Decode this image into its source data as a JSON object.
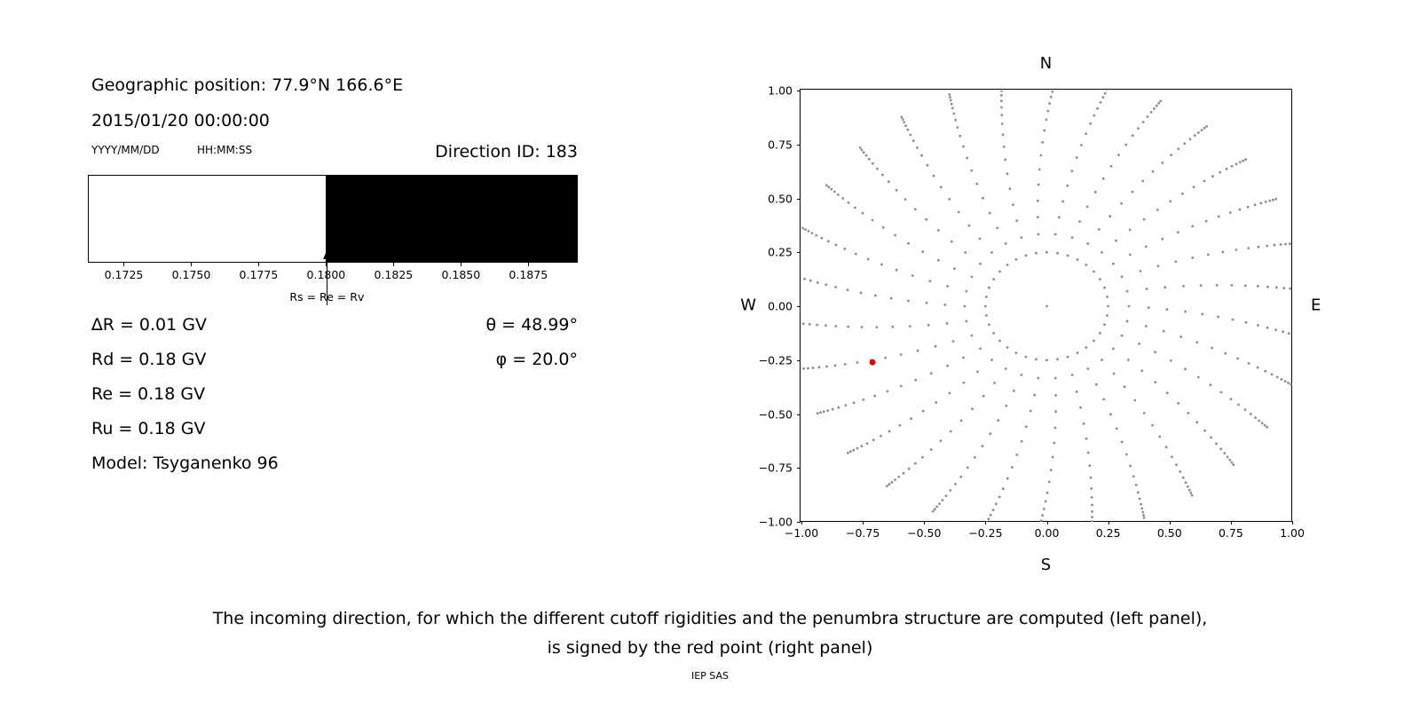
{
  "figure": {
    "background": "#ffffff",
    "text_color": "#000000"
  },
  "left_panel": {
    "geo_position": "Geographic position: 77.9°N 166.6°E",
    "datetime": "2015/01/20 00:00:00",
    "date_format_label": "YYYY/MM/DD",
    "time_format_label": "HH:MM:SS",
    "direction_id": "Direction ID: 183",
    "values": [
      "∆R = 0.01 GV",
      "Rd = 0.18 GV",
      "Re = 0.18 GV",
      "Ru = 0.18 GV",
      "Model: Tsyganenko 96"
    ],
    "angles": [
      "θ = 48.99°",
      "φ = 20.0°"
    ]
  },
  "caption": {
    "line1": "The incoming direction, for which the different cutoff rigidities and the penumbra structure are computed (left panel),",
    "line2": "is signed by the red point (right panel)",
    "credit": "IEP SAS"
  },
  "chart_data": [
    {
      "id": "penumbra-structure",
      "type": "bar",
      "xlim": [
        0.1712,
        0.1893
      ],
      "xticks": [
        0.1725,
        0.175,
        0.1775,
        0.18,
        0.1825,
        0.185,
        0.1875
      ],
      "xtick_labels": [
        "0.1725",
        "0.1750",
        "0.1775",
        "0.1800",
        "0.1825",
        "0.1850",
        "0.1875"
      ],
      "segments": [
        {
          "from": 0.1712,
          "to": 0.18,
          "color": "#ffffff"
        },
        {
          "from": 0.18,
          "to": 0.1893,
          "color": "#000000"
        }
      ],
      "marker": {
        "x": 0.18,
        "label": "Rs = Re = Rv"
      }
    },
    {
      "id": "incoming-direction-map",
      "type": "scatter",
      "xlim": [
        -1,
        1
      ],
      "ylim": [
        -1,
        1
      ],
      "xticks": [
        -1,
        -0.75,
        -0.5,
        -0.25,
        0,
        0.25,
        0.5,
        0.75,
        1
      ],
      "yticks": [
        -1,
        -0.75,
        -0.5,
        -0.25,
        0,
        0.25,
        0.5,
        0.75,
        1
      ],
      "xtick_labels": [
        "−1.00",
        "−0.75",
        "−0.50",
        "−0.25",
        "0.00",
        "0.25",
        "0.50",
        "0.75",
        "1.00"
      ],
      "ytick_labels": [
        "−1.00",
        "−0.75",
        "−0.50",
        "−0.25",
        "0.00",
        "0.25",
        "0.50",
        "0.75",
        "1.00"
      ],
      "compass": {
        "top": "N",
        "bottom": "S",
        "left": "W",
        "right": "E"
      },
      "grid_dots": {
        "color": "#8c8c8c",
        "center_dot": true,
        "ring_radius": 0.25,
        "ring_azimuth_step_deg": 10,
        "azimuth_step_deg": 12,
        "curl_deg": -8,
        "spoke_radii": [
          0.335,
          0.415,
          0.49,
          0.565,
          0.635,
          0.7,
          0.76,
          0.815,
          0.865,
          0.905,
          0.94,
          0.97,
          0.995,
          1.015,
          1.032,
          1.046,
          1.058
        ]
      },
      "red_point": {
        "x": -0.71,
        "y": -0.26,
        "color": "#e00000"
      }
    }
  ]
}
